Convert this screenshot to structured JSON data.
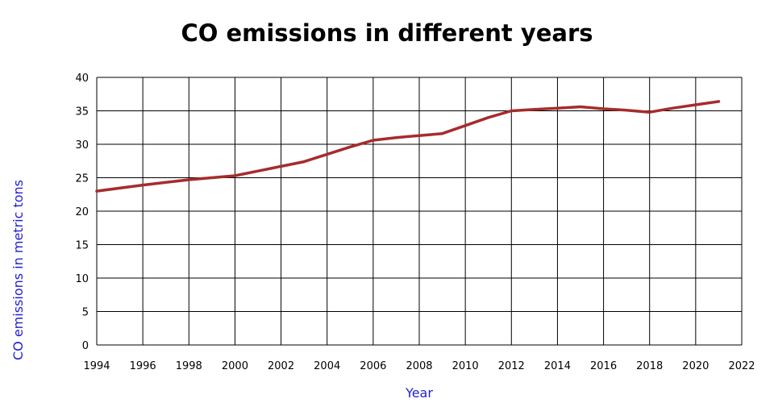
{
  "chart_data": {
    "type": "line",
    "title": "CO emissions in different years",
    "xlabel": "Year",
    "ylabel": "CO emissions in metric tons",
    "xlim": [
      1994,
      2022
    ],
    "ylim": [
      0,
      40
    ],
    "x_ticks": [
      1994,
      1996,
      1998,
      2000,
      2002,
      2004,
      2006,
      2008,
      2010,
      2012,
      2014,
      2016,
      2018,
      2020,
      2022
    ],
    "y_ticks": [
      0,
      5,
      10,
      15,
      20,
      25,
      30,
      35,
      40
    ],
    "grid": true,
    "legend": "none",
    "series": [
      {
        "color": "#a62c2c",
        "x": [
          1994,
          1996,
          1997,
          1998,
          1999,
          2000,
          2001,
          2002,
          2003,
          2004,
          2005,
          2006,
          2007,
          2008,
          2009,
          2010,
          2011,
          2012,
          2013,
          2014,
          2015,
          2016,
          2017,
          2018,
          2019,
          2020,
          2021
        ],
        "y": [
          23.0,
          23.9,
          24.3,
          24.7,
          25.0,
          25.3,
          26.0,
          26.7,
          27.4,
          28.5,
          29.6,
          30.6,
          31.0,
          31.3,
          31.6,
          32.8,
          34.0,
          35.0,
          35.2,
          35.4,
          35.6,
          35.3,
          35.1,
          34.8,
          35.4,
          35.9,
          36.4
        ]
      }
    ],
    "colors": {
      "axis_label": "#1f1fd1",
      "grid": "#000000"
    }
  }
}
